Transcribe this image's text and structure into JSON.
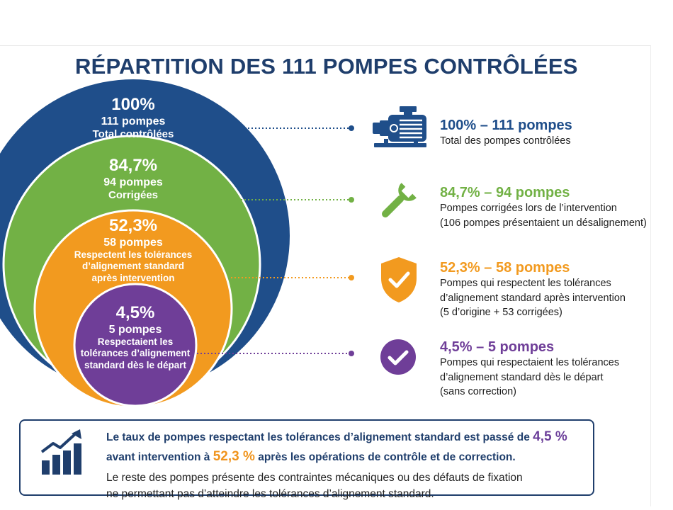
{
  "title": "RÉPARTITION DES 111 POMPES CONTRÔLÉES",
  "colors": {
    "navy": "#1f4e8a",
    "green": "#72b145",
    "orange": "#f29a1f",
    "purple": "#6f3e98",
    "title_navy": "#1f3e6c"
  },
  "circles": [
    {
      "pct": "100%",
      "count": "111 pompes",
      "lines": [
        "Total contrôlées"
      ]
    },
    {
      "pct": "84,7%",
      "count": "94 pompes",
      "lines": [
        "Corrigées"
      ]
    },
    {
      "pct": "52,3%",
      "count": "58 pompes",
      "lines": [
        "Respectent les tolérances",
        "d’alignement standard",
        "après intervention"
      ]
    },
    {
      "pct": "4,5%",
      "count": "5 pompes",
      "lines": [
        "Respectaient les",
        "tolérances d’alignement",
        "standard dès le départ"
      ]
    }
  ],
  "legend": [
    {
      "icon": "pump-icon",
      "head": "100% – 111 pompes",
      "body": [
        "Total des pompes contrôlées"
      ]
    },
    {
      "icon": "wrench-icon",
      "head": "84,7% – 94 pompes",
      "body": [
        "Pompes corrigées lors de l’intervention",
        "(106 pompes présentaient un désalignement)"
      ]
    },
    {
      "icon": "shield-check-icon",
      "head": "52,3% – 58 pompes",
      "body": [
        "Pompes qui respectent les tolérances",
        "d’alignement standard après intervention",
        "(5 d’origine + 53 corrigées)"
      ]
    },
    {
      "icon": "circle-check-icon",
      "head": "4,5%  – 5 pompes",
      "body": [
        "Pompes qui respectaient les tolérances",
        "d’alignement standard dès le départ",
        "(sans correction)"
      ]
    }
  ],
  "summary": {
    "icon": "bar-chart-trend-icon",
    "p1_a": "Le taux de pompes respectant les tolérances d’alignement standard est passé de ",
    "p1_val1": "4,5 %",
    "p1_b": "avant intervention à ",
    "p1_val2": "52,3 %",
    "p1_c": " après les opérations de contrôle et de correction.",
    "p2_line1": "Le reste des pompes présente des contraintes mécaniques ou des défauts de fixation",
    "p2_line2": "ne permettant pas d’atteindre les tolérances d’alignement standard."
  }
}
